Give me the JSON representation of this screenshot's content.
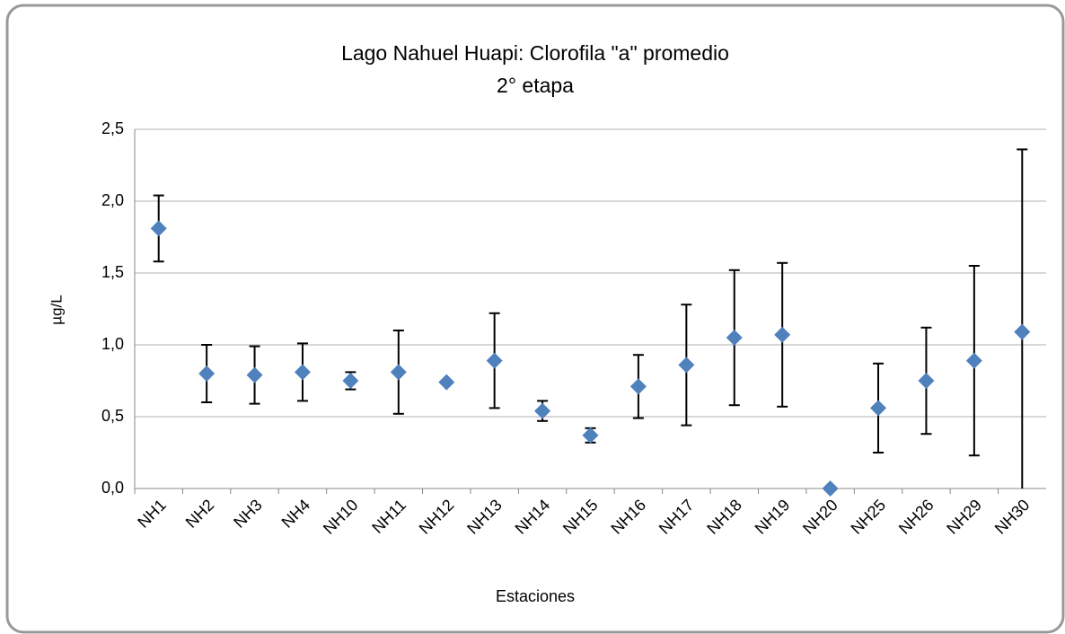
{
  "chart_data": {
    "type": "errorbar",
    "title": "Lago Nahuel Huapi: Clorofila \"a\" promedio",
    "subtitle": "2° etapa",
    "x_label": "Estaciones",
    "y_label": "µg/L",
    "categories": [
      "NH1",
      "NH2",
      "NH3",
      "NH4",
      "NH10",
      "NH11",
      "NH12",
      "NH13",
      "NH14",
      "NH15",
      "NH16",
      "NH17",
      "NH18",
      "NH19",
      "NH20",
      "NH25",
      "NH26",
      "NH29",
      "NH30"
    ],
    "values": [
      1.81,
      0.8,
      0.79,
      0.81,
      0.75,
      0.81,
      0.74,
      0.89,
      0.54,
      0.37,
      0.71,
      0.86,
      1.05,
      1.07,
      0.0,
      0.56,
      0.75,
      0.89,
      1.09
    ],
    "errors": [
      0.23,
      0.2,
      0.2,
      0.2,
      0.06,
      0.29,
      0.0,
      0.33,
      0.07,
      0.05,
      0.22,
      0.42,
      0.47,
      0.5,
      0.0,
      0.31,
      0.37,
      0.66,
      1.27
    ],
    "color": "#4f81bd",
    "ylim": [
      0,
      2.5
    ],
    "yticks": [
      {
        "value": 0,
        "label": "0,0"
      },
      {
        "value": 0.5,
        "label": "0,5"
      },
      {
        "value": 1,
        "label": "1,0"
      },
      {
        "value": 1.5,
        "label": "1,5"
      },
      {
        "value": 2,
        "label": "2,0"
      },
      {
        "value": 2.5,
        "label": "2,5"
      }
    ],
    "grid": true
  }
}
